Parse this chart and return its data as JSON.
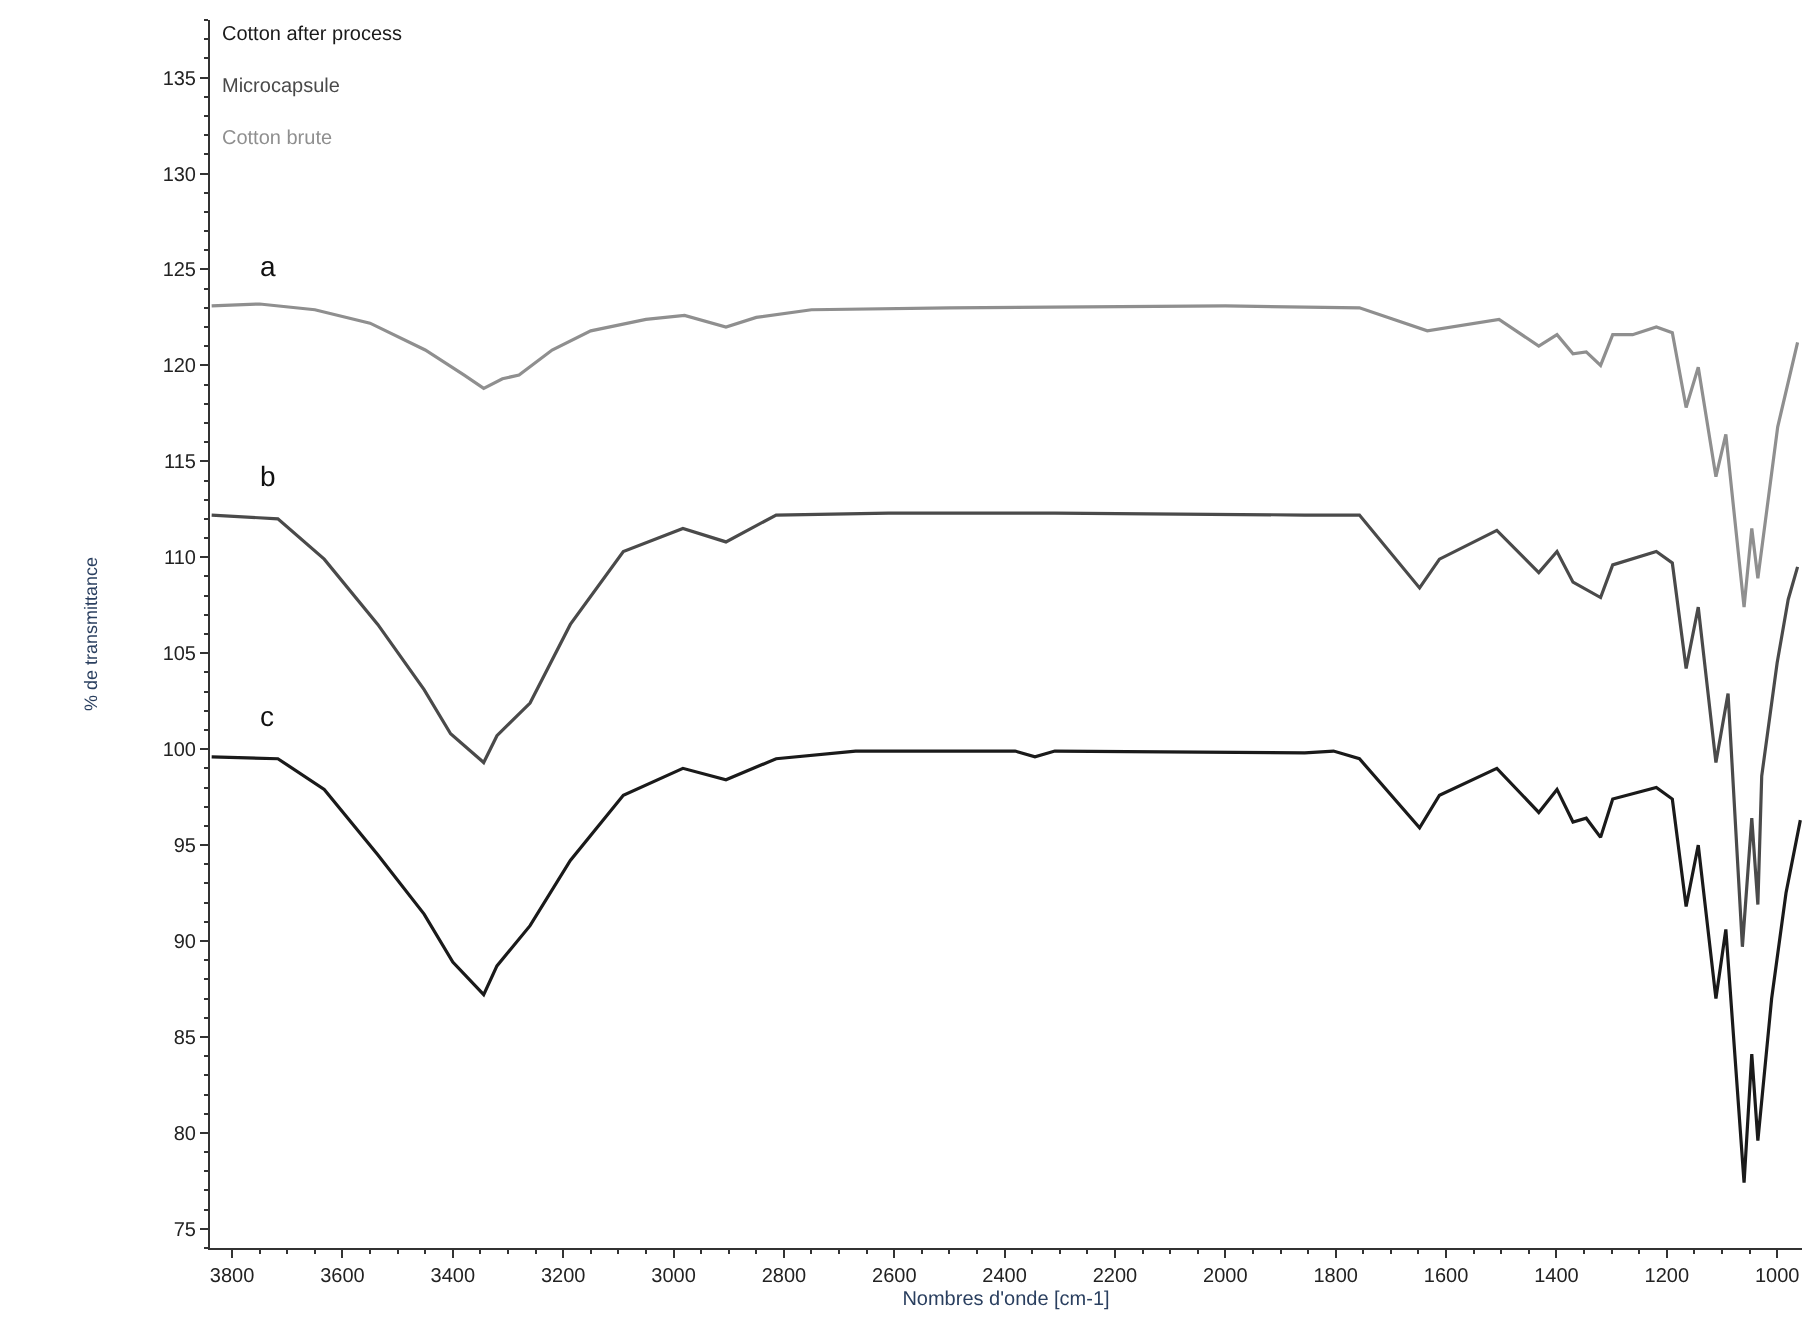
{
  "chart_data": {
    "type": "line",
    "xlabel": "Nombres d'onde [cm-1]",
    "ylabel": "% de transmittance",
    "xlim": [
      3840,
      955
    ],
    "xticks": [
      3800,
      3600,
      3400,
      3200,
      3000,
      2800,
      2600,
      2400,
      2200,
      2000,
      1800,
      1600,
      1400,
      1200,
      1000
    ],
    "ylim": [
      74,
      138
    ],
    "yticks": [
      75,
      80,
      85,
      90,
      95,
      100,
      105,
      110,
      115,
      120,
      125,
      130,
      135
    ],
    "legend": "top left",
    "line_style": "solid",
    "annotations": [
      "a",
      "b",
      "c"
    ],
    "series": [
      {
        "name": "Cotton after process",
        "color": "#1a1a1a",
        "x": [
          3837,
          3717,
          3633,
          3536,
          3452,
          3400,
          3344,
          3320,
          3260,
          3187,
          3091,
          2983,
          2905,
          2814,
          2670,
          2381,
          2345,
          2309,
          1856,
          1804,
          1757,
          1648,
          1612,
          1508,
          1432,
          1399,
          1370,
          1346,
          1320,
          1298,
          1219,
          1190,
          1165,
          1143,
          1111,
          1093,
          1060,
          1046,
          1035,
          1010,
          984,
          958
        ],
        "values": [
          99.6,
          99.5,
          97.9,
          94.5,
          91.4,
          88.9,
          87.2,
          88.7,
          90.8,
          94.2,
          97.6,
          99.0,
          98.4,
          99.5,
          99.9,
          99.9,
          99.6,
          99.9,
          99.8,
          99.9,
          99.5,
          95.9,
          97.6,
          99.0,
          96.7,
          97.9,
          96.2,
          96.4,
          95.4,
          97.4,
          98.0,
          97.4,
          91.8,
          95.0,
          87.0,
          90.6,
          77.4,
          84.1,
          79.6,
          87.0,
          92.5,
          96.3
        ]
      },
      {
        "name": "Microcapsule",
        "color": "#4a4a4a",
        "x": [
          3837,
          3717,
          3633,
          3536,
          3452,
          3404,
          3344,
          3320,
          3260,
          3187,
          3091,
          2983,
          2905,
          2814,
          2610,
          2309,
          1856,
          1757,
          1648,
          1612,
          1508,
          1432,
          1399,
          1370,
          1320,
          1298,
          1219,
          1190,
          1165,
          1143,
          1111,
          1089,
          1063,
          1046,
          1035,
          1028,
          1000,
          980,
          963
        ],
        "values": [
          112.2,
          112.0,
          109.9,
          106.5,
          103.1,
          100.8,
          99.3,
          100.7,
          102.4,
          106.5,
          110.3,
          111.5,
          110.8,
          112.2,
          112.3,
          112.3,
          112.2,
          112.2,
          108.4,
          109.9,
          111.4,
          109.2,
          110.3,
          108.7,
          107.9,
          109.6,
          110.3,
          109.7,
          104.2,
          107.4,
          99.3,
          102.9,
          89.7,
          96.4,
          91.9,
          98.6,
          104.5,
          107.8,
          109.5
        ]
      },
      {
        "name": "Cotton brute",
        "color": "#8f8f8f",
        "x": [
          3837,
          3750,
          3650,
          3550,
          3450,
          3380,
          3344,
          3310,
          3280,
          3220,
          3150,
          3050,
          2980,
          2905,
          2850,
          2750,
          2500,
          2000,
          1757,
          1634,
          1504,
          1432,
          1399,
          1370,
          1346,
          1320,
          1298,
          1262,
          1219,
          1190,
          1165,
          1143,
          1111,
          1093,
          1060,
          1046,
          1035,
          999,
          963
        ],
        "values": [
          123.1,
          123.2,
          122.9,
          122.2,
          120.8,
          119.5,
          118.8,
          119.3,
          119.5,
          120.8,
          121.8,
          122.4,
          122.6,
          122.0,
          122.5,
          122.9,
          123.0,
          123.1,
          123.0,
          121.8,
          122.4,
          121.0,
          121.6,
          120.6,
          120.7,
          120.0,
          121.6,
          121.6,
          122.0,
          121.7,
          117.8,
          119.9,
          114.2,
          116.4,
          107.4,
          111.5,
          108.9,
          116.8,
          121.2
        ]
      }
    ]
  }
}
